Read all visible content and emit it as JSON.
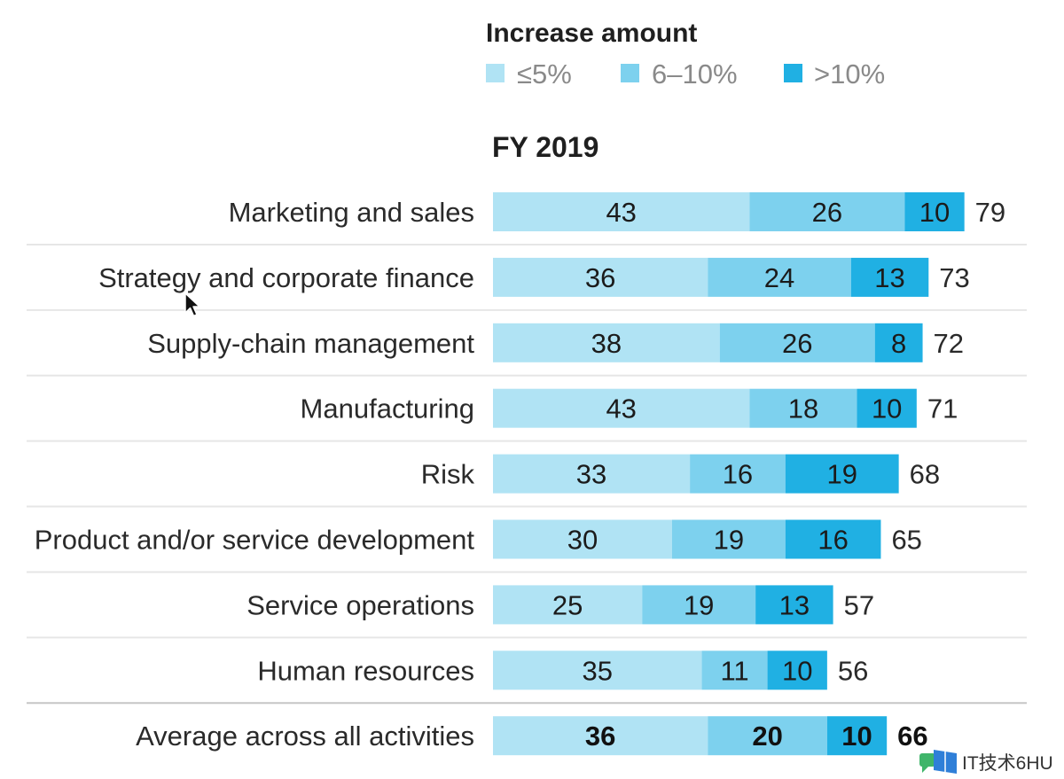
{
  "chart_data": {
    "type": "bar",
    "orientation": "horizontal",
    "stacked": true,
    "legend_position": "top",
    "grid": false,
    "legend_title": "Increase amount",
    "title": "FY 2019",
    "categories": [
      "Marketing and sales",
      "Strategy and corporate finance",
      "Supply-chain management",
      "Manufacturing",
      "Risk",
      "Product and/or service development",
      "Service operations",
      "Human resources",
      "Average across all activities"
    ],
    "series": [
      {
        "name": "≤5%",
        "color": "#b0e3f4",
        "values": [
          43,
          36,
          38,
          43,
          33,
          30,
          25,
          35,
          36
        ]
      },
      {
        "name": "6–10%",
        "color": "#7dd1ee",
        "values": [
          26,
          24,
          26,
          18,
          16,
          19,
          19,
          11,
          20
        ]
      },
      {
        "name": ">10%",
        "color": "#20b0e3",
        "values": [
          10,
          13,
          8,
          10,
          19,
          16,
          13,
          10,
          10
        ]
      }
    ],
    "totals": [
      79,
      73,
      72,
      71,
      68,
      65,
      57,
      56,
      66
    ],
    "emphasized": [
      false,
      false,
      false,
      false,
      false,
      false,
      false,
      false,
      true
    ]
  },
  "watermark": {
    "text": "IT技术6HU",
    "icon": "book-chat-logo-icon"
  },
  "cursor": {
    "icon": "mouse-cursor-icon"
  }
}
